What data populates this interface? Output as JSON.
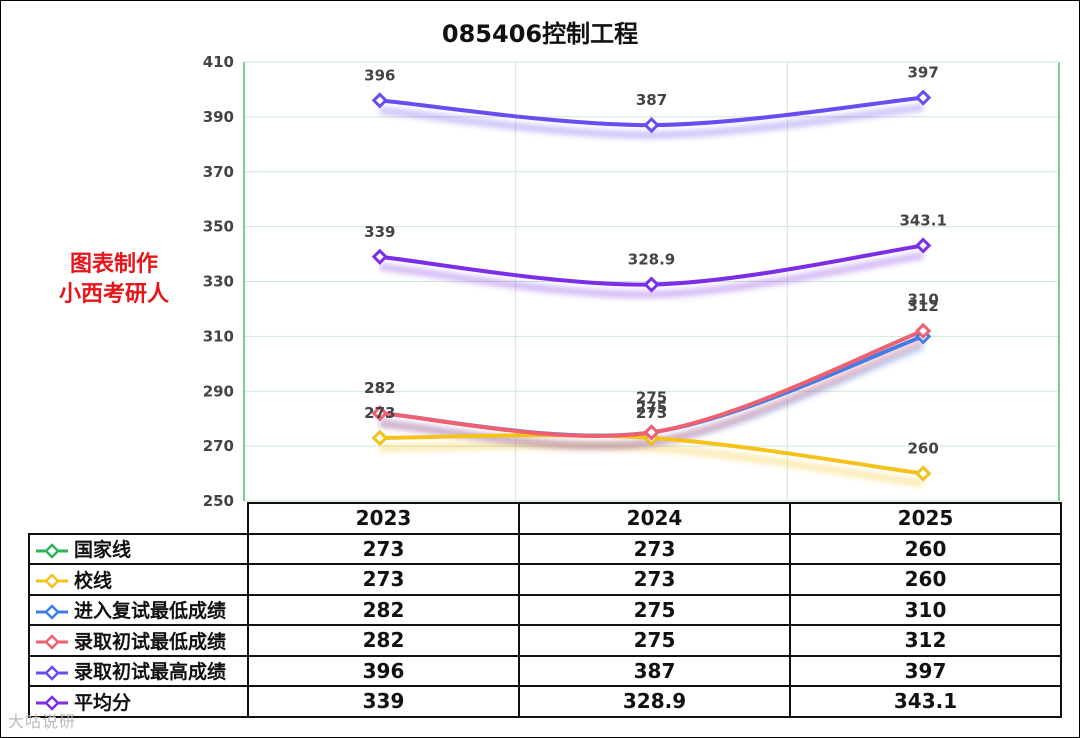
{
  "title": "085406控制工程",
  "watermark_lines": [
    "图表制作",
    "小西考研人"
  ],
  "bottom_watermark": "大咕说研",
  "chart_data": {
    "type": "line",
    "title": "085406控制工程",
    "categories": [
      "2023",
      "2024",
      "2025"
    ],
    "y_ticks": [
      250,
      270,
      290,
      310,
      330,
      350,
      370,
      390,
      410
    ],
    "ylim": [
      250,
      410
    ],
    "grid": true,
    "legend_placement": "data table",
    "series": [
      {
        "name": "国家线",
        "values": [
          273,
          273,
          260
        ],
        "labels": [
          "273",
          "273",
          "260"
        ],
        "color": "#2fb35a",
        "show_line": false
      },
      {
        "name": "校线",
        "values": [
          273,
          273,
          260
        ],
        "labels": [
          "273",
          "273",
          "260"
        ],
        "color": "#f5c21a",
        "show_line": true
      },
      {
        "name": "进入复试最低成绩",
        "values": [
          282,
          275,
          310
        ],
        "labels": [
          "282",
          "275",
          "310"
        ],
        "color": "#3f7ee6",
        "show_line": true
      },
      {
        "name": "录取初试最低成绩",
        "values": [
          282,
          275,
          312
        ],
        "labels": [
          "282",
          "275",
          "312"
        ],
        "color": "#ef6070",
        "show_line": true
      },
      {
        "name": "录取初试最高成绩",
        "values": [
          396,
          387,
          397
        ],
        "labels": [
          "396",
          "387",
          "397"
        ],
        "color": "#6a4cf0",
        "show_line": true
      },
      {
        "name": "平均分",
        "values": [
          339,
          328.9,
          343.1
        ],
        "labels": [
          "339",
          "328.9",
          "343.1"
        ],
        "color": "#7b2ee6",
        "show_line": true
      }
    ]
  }
}
